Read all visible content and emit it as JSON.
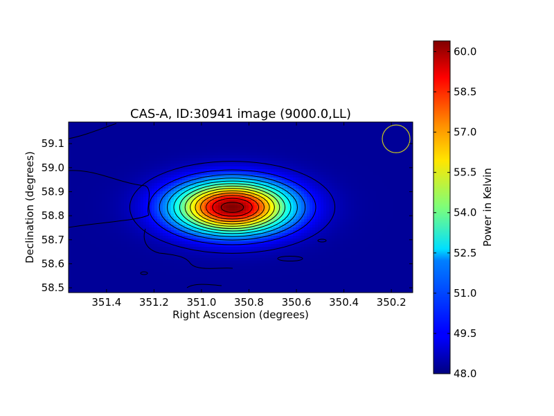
{
  "chart_data": {
    "type": "heatmap",
    "title": "CAS-A, ID:30941 image (9000.0,LL)",
    "xlabel": "Right Ascension (degrees)",
    "ylabel": "Declination (degrees)",
    "xlim": [
      351.56,
      350.11
    ],
    "ylim": [
      58.48,
      59.19
    ],
    "x_ticks": [
      351.4,
      351.2,
      351.0,
      350.8,
      350.6,
      350.4,
      350.2
    ],
    "x_tick_labels": [
      "351.4",
      "351.2",
      "351.0",
      "350.8",
      "350.6",
      "350.4",
      "350.2"
    ],
    "y_ticks": [
      58.5,
      58.6,
      58.7,
      58.8,
      58.9,
      59.0,
      59.1
    ],
    "y_tick_labels": [
      "58.5",
      "58.6",
      "58.7",
      "58.8",
      "58.9",
      "59.0",
      "59.1"
    ],
    "source": {
      "peak_ra": 350.87,
      "peak_dec": 58.835,
      "peak_value": 60.4,
      "background_value": 48.3,
      "contour_count": 13
    },
    "beam_circle": {
      "ra": 350.18,
      "dec": 59.12,
      "color": "#c8c820"
    },
    "colorbar": {
      "label": "Power in Kelvin",
      "min": 48.0,
      "max": 60.4,
      "ticks": [
        48.0,
        49.5,
        51.0,
        52.5,
        54.0,
        55.5,
        57.0,
        58.5,
        60.0
      ],
      "tick_labels": [
        "48.0",
        "49.5",
        "51.0",
        "52.5",
        "54.0",
        "55.5",
        "57.0",
        "58.5",
        "60.0"
      ],
      "colormap": "jet"
    },
    "grid": false
  }
}
